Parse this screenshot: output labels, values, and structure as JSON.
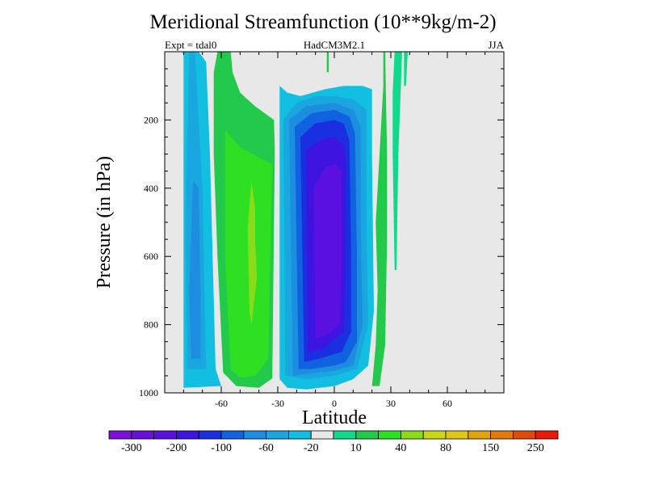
{
  "header": {
    "title": "Meridional Streamfunction (10**9kg/m-2)",
    "left": "Expt = tdal0",
    "center": "HadCM3M2.1",
    "right": "JJA"
  },
  "chart_data": {
    "type": "heatmap",
    "title": "Meridional Streamfunction (10**9kg/m-2)",
    "xlabel": "Latitude",
    "ylabel": "Pressure (in hPa)",
    "xlim": [
      -90,
      90
    ],
    "ylim": [
      1000,
      0
    ],
    "x_ticks": [
      -60,
      -30,
      0,
      30,
      60
    ],
    "y_ticks": [
      200,
      400,
      600,
      800,
      1000
    ],
    "background_color": "#e8e8e8",
    "colorbar": {
      "colors": [
        "#7b10d8",
        "#6a0fdc",
        "#5a10df",
        "#3d14e0",
        "#1a2fe0",
        "#1162e0",
        "#1d8ddf",
        "#1aa6df",
        "#12bfe0",
        "#e8e8e8",
        "#10d98c",
        "#22c94a",
        "#2ee022",
        "#88dc1a",
        "#c8d71a",
        "#e0c71a",
        "#e0a312",
        "#e07a10",
        "#e04a0d",
        "#e81a0a"
      ],
      "labels": [
        "-300",
        "-200",
        "-100",
        "-60",
        "-20",
        "10",
        "40",
        "80",
        "150",
        "250"
      ]
    },
    "regions": [
      {
        "level": 9,
        "value": 0,
        "poly": [
          [
            -80,
            1000
          ],
          [
            -80,
            0
          ],
          [
            -78,
            0
          ],
          [
            -65,
            0
          ],
          [
            -62,
            0
          ],
          [
            -58,
            30
          ],
          [
            -50,
            80
          ],
          [
            -40,
            120
          ],
          [
            -35,
            170
          ],
          [
            -30,
            210
          ],
          [
            -27,
            240
          ],
          [
            -25,
            300
          ],
          [
            -24,
            600
          ],
          [
            -24,
            1000
          ]
        ]
      },
      {
        "level": 8,
        "value": -10,
        "poly": [
          [
            -80,
            985
          ],
          [
            -80,
            0
          ],
          [
            -78,
            0
          ],
          [
            -72,
            0
          ],
          [
            -68,
            30
          ],
          [
            -66,
            300
          ],
          [
            -63,
            930
          ],
          [
            -60,
            980
          ]
        ]
      },
      {
        "level": 7,
        "value": -20,
        "poly": [
          [
            -78,
            930
          ],
          [
            -79,
            500
          ],
          [
            -77,
            0
          ],
          [
            -74,
            0
          ],
          [
            -73,
            100
          ],
          [
            -70,
            400
          ],
          [
            -68,
            930
          ]
        ]
      },
      {
        "level": 6,
        "value": -40,
        "poly": [
          [
            -76,
            900
          ],
          [
            -77,
            700
          ],
          [
            -75,
            380
          ],
          [
            -72,
            400
          ],
          [
            -71,
            700
          ],
          [
            -71,
            900
          ]
        ]
      },
      {
        "level": 11,
        "value": 10,
        "poly": [
          [
            -62,
            0
          ],
          [
            -55,
            0
          ],
          [
            -54,
            60
          ],
          [
            -50,
            120
          ],
          [
            -42,
            160
          ],
          [
            -32,
            200
          ],
          [
            -30,
            600
          ],
          [
            -31,
            950
          ],
          [
            -40,
            985
          ],
          [
            -52,
            980
          ],
          [
            -59,
            940
          ],
          [
            -62,
            600
          ],
          [
            -64,
            300
          ],
          [
            -64,
            60
          ]
        ]
      },
      {
        "level": 12,
        "value": 30,
        "poly": [
          [
            -58,
            230
          ],
          [
            -50,
            280
          ],
          [
            -40,
            310
          ],
          [
            -33,
            330
          ],
          [
            -34,
            600
          ],
          [
            -35,
            900
          ],
          [
            -42,
            950
          ],
          [
            -50,
            955
          ],
          [
            -55,
            930
          ],
          [
            -58,
            600
          ]
        ]
      },
      {
        "level": 13,
        "value": 50,
        "poly": [
          [
            -46,
            520
          ],
          [
            -44,
            380
          ],
          [
            -42,
            460
          ],
          [
            -42,
            560
          ],
          [
            -41,
            660
          ],
          [
            -44,
            800
          ],
          [
            -45,
            760
          ]
        ]
      },
      {
        "level": 9,
        "value": 0,
        "poly": [
          [
            -33,
            1000
          ],
          [
            -31,
            0
          ],
          [
            -27,
            0
          ],
          [
            -25,
            100
          ],
          [
            -22,
            160
          ],
          [
            -15,
            170
          ],
          [
            -5,
            165
          ],
          [
            2,
            150
          ],
          [
            8,
            130
          ],
          [
            14,
            120
          ],
          [
            18,
            0
          ],
          [
            22,
            0
          ],
          [
            25,
            120
          ],
          [
            24,
            300
          ],
          [
            25,
            1000
          ]
        ]
      },
      {
        "level": 8,
        "value": -10,
        "poly": [
          [
            -29,
            960
          ],
          [
            -29,
            100
          ],
          [
            -25,
            120
          ],
          [
            -18,
            130
          ],
          [
            -5,
            110
          ],
          [
            5,
            100
          ],
          [
            15,
            100
          ],
          [
            20,
            110
          ],
          [
            20,
            300
          ],
          [
            21,
            760
          ],
          [
            18,
            920
          ],
          [
            10,
            960
          ],
          [
            0,
            980
          ],
          [
            -15,
            990
          ],
          [
            -25,
            985
          ]
        ]
      },
      {
        "level": 7,
        "value": -20,
        "poly": [
          [
            -26,
            950
          ],
          [
            -27,
            200
          ],
          [
            -20,
            150
          ],
          [
            -10,
            130
          ],
          [
            0,
            130
          ],
          [
            10,
            140
          ],
          [
            17,
            170
          ],
          [
            17,
            500
          ],
          [
            18,
            800
          ],
          [
            12,
            930
          ],
          [
            0,
            950
          ],
          [
            -15,
            960
          ]
        ]
      },
      {
        "level": 6,
        "value": -40,
        "poly": [
          [
            -22,
            950
          ],
          [
            -24,
            200
          ],
          [
            -15,
            160
          ],
          [
            0,
            150
          ],
          [
            10,
            170
          ],
          [
            14,
            220
          ],
          [
            14,
            500
          ],
          [
            15,
            800
          ],
          [
            10,
            920
          ],
          [
            0,
            935
          ],
          [
            -15,
            945
          ]
        ]
      },
      {
        "level": 5,
        "value": -60,
        "poly": [
          [
            -19,
            930
          ],
          [
            -21,
            220
          ],
          [
            -12,
            180
          ],
          [
            0,
            170
          ],
          [
            8,
            190
          ],
          [
            11,
            240
          ],
          [
            12,
            600
          ],
          [
            12,
            850
          ],
          [
            6,
            910
          ],
          [
            0,
            920
          ],
          [
            -12,
            930
          ]
        ]
      },
      {
        "level": 4,
        "value": -100,
        "poly": [
          [
            -16,
            910
          ],
          [
            -18,
            250
          ],
          [
            -10,
            210
          ],
          [
            0,
            200
          ],
          [
            5,
            210
          ],
          [
            8,
            260
          ],
          [
            9,
            600
          ],
          [
            9,
            820
          ],
          [
            4,
            880
          ],
          [
            -8,
            900
          ]
        ]
      },
      {
        "level": 3,
        "value": -150,
        "poly": [
          [
            -14,
            880
          ],
          [
            -15,
            290
          ],
          [
            -8,
            260
          ],
          [
            0,
            250
          ],
          [
            5,
            270
          ],
          [
            6,
            320
          ],
          [
            6,
            650
          ],
          [
            5,
            820
          ],
          [
            -6,
            870
          ]
        ]
      },
      {
        "level": 2,
        "value": -200,
        "poly": [
          [
            -10,
            840
          ],
          [
            -11,
            400
          ],
          [
            -5,
            340
          ],
          [
            0,
            330
          ],
          [
            4,
            350
          ],
          [
            4,
            600
          ],
          [
            3,
            800
          ],
          [
            -4,
            830
          ]
        ]
      },
      {
        "level": 11,
        "value": 10,
        "poly": [
          [
            20,
            980
          ],
          [
            22,
            860
          ],
          [
            23,
            700
          ],
          [
            22,
            500
          ],
          [
            24,
            300
          ],
          [
            26,
            100
          ],
          [
            26,
            0
          ],
          [
            27,
            0
          ],
          [
            28,
            300
          ],
          [
            28,
            550
          ],
          [
            27,
            860
          ],
          [
            24,
            980
          ]
        ]
      },
      {
        "level": 10,
        "value": 5,
        "poly": [
          [
            32,
            640
          ],
          [
            31,
            300
          ],
          [
            31,
            120
          ],
          [
            32,
            0
          ],
          [
            36,
            0
          ],
          [
            35,
            150
          ],
          [
            34,
            300
          ],
          [
            33,
            640
          ]
        ]
      },
      {
        "level": 10,
        "value": 5,
        "poly": [
          [
            37,
            100
          ],
          [
            37,
            0
          ],
          [
            39,
            0
          ],
          [
            38,
            100
          ]
        ]
      },
      {
        "level": 11,
        "value": 10,
        "poly": [
          [
            -4,
            60
          ],
          [
            -4,
            0
          ],
          [
            -3,
            0
          ],
          [
            -3,
            60
          ]
        ]
      }
    ]
  }
}
